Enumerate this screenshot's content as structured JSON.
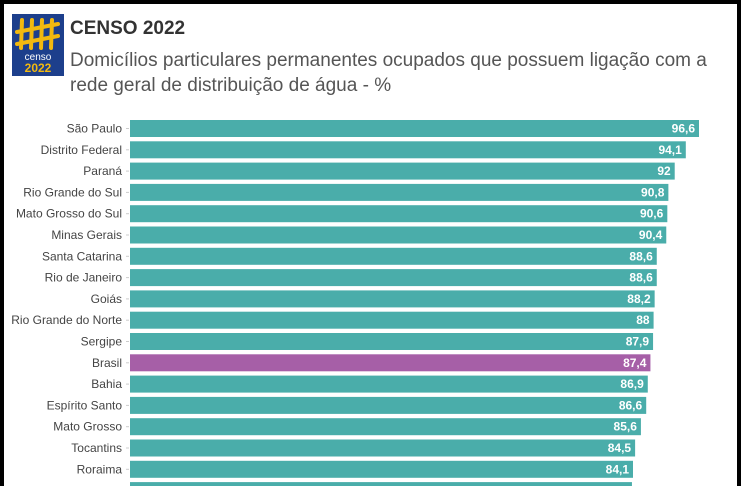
{
  "header": {
    "title": "CENSO 2022",
    "subtitle": "Domicílios particulares permanentes ocupados que possuem ligação com a rede geral de distribuição de água - %",
    "logo_text": "censo 2022"
  },
  "colors": {
    "bar": "#4aadaa",
    "highlight": "#a65fa7",
    "logo_bg": "#1d3f8c",
    "logo_fg": "#f2b90f"
  },
  "chart_data": {
    "type": "bar",
    "orientation": "horizontal",
    "title": "Domicílios particulares permanentes ocupados que possuem ligação com a rede geral de distribuição de água - %",
    "categories": [
      "São Paulo",
      "Distrito Federal",
      "Paraná",
      "Rio Grande do Sul",
      "Mato Grosso do Sul",
      "Minas Gerais",
      "Santa Catarina",
      "Rio de Janeiro",
      "Goiás",
      "Rio Grande do Norte",
      "Sergipe",
      "Brasil",
      "Bahia",
      "Espírito Santo",
      "Mato Grosso",
      "Tocantins",
      "Roraima"
    ],
    "values": [
      96.6,
      94.1,
      92,
      90.8,
      90.6,
      90.4,
      88.6,
      88.6,
      88.2,
      88,
      87.9,
      87.4,
      86.9,
      86.6,
      85.6,
      84.5,
      84.1
    ],
    "value_labels": [
      "96,6",
      "94,1",
      "92",
      "90,8",
      "90,6",
      "90,4",
      "88,6",
      "88,6",
      "88,2",
      "88",
      "87,9",
      "87,4",
      "86,9",
      "86,6",
      "85,6",
      "84,5",
      "84,1"
    ],
    "highlight": "Brasil",
    "xlabel": "",
    "ylabel": ""
  }
}
